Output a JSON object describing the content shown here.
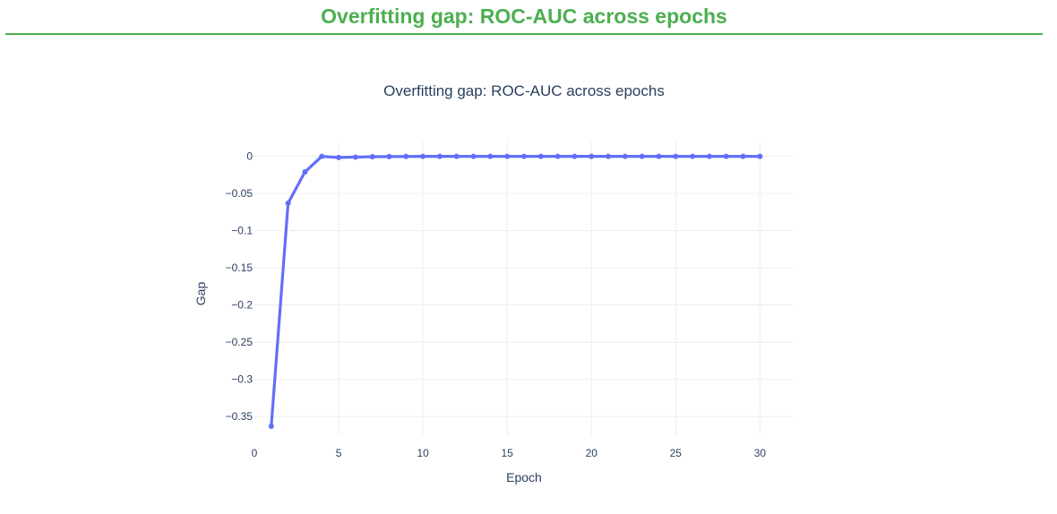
{
  "page": {
    "heading": "Overfitting gap: ROC-AUC across epochs"
  },
  "colors": {
    "heading": "#4caf50",
    "series": "#636efa",
    "grid": "#ebedf0",
    "text": "#2a3f5f"
  },
  "chart_data": {
    "type": "line",
    "title": "Overfitting gap: ROC-AUC across epochs",
    "xlabel": "Epoch",
    "ylabel": "Gap",
    "xlim": [
      0,
      32
    ],
    "ylim": [
      -0.375,
      0.02
    ],
    "x_ticks": [
      0,
      5,
      10,
      15,
      20,
      25,
      30
    ],
    "x_tick_labels": [
      "0",
      "5",
      "10",
      "15",
      "20",
      "25",
      "30"
    ],
    "y_ticks": [
      0,
      -0.05,
      -0.1,
      -0.15,
      -0.2,
      -0.25,
      -0.3,
      -0.35
    ],
    "y_tick_labels": [
      "0",
      "−0.05",
      "−0.1",
      "−0.15",
      "−0.2",
      "−0.25",
      "−0.3",
      "−0.35"
    ],
    "grid": true,
    "legend": "none",
    "series": [
      {
        "x": [
          1,
          2,
          3,
          4,
          5,
          6,
          7,
          8,
          9,
          10,
          11,
          12,
          13,
          14,
          15,
          16,
          17,
          18,
          19,
          20,
          21,
          22,
          23,
          24,
          25,
          26,
          27,
          28,
          29,
          30
        ],
        "y": [
          -0.363,
          -0.063,
          -0.021,
          0.0,
          -0.0015,
          -0.001,
          -0.0005,
          -0.0003,
          -0.0002,
          0.0,
          0.0,
          0.0,
          0.0,
          0.0,
          0.0,
          0.0,
          0.0,
          0.0,
          0.0,
          0.0,
          0.0,
          0.0,
          0.0,
          0.0,
          0.0,
          0.0,
          0.0,
          0.0,
          0.0,
          0.0
        ]
      }
    ]
  }
}
